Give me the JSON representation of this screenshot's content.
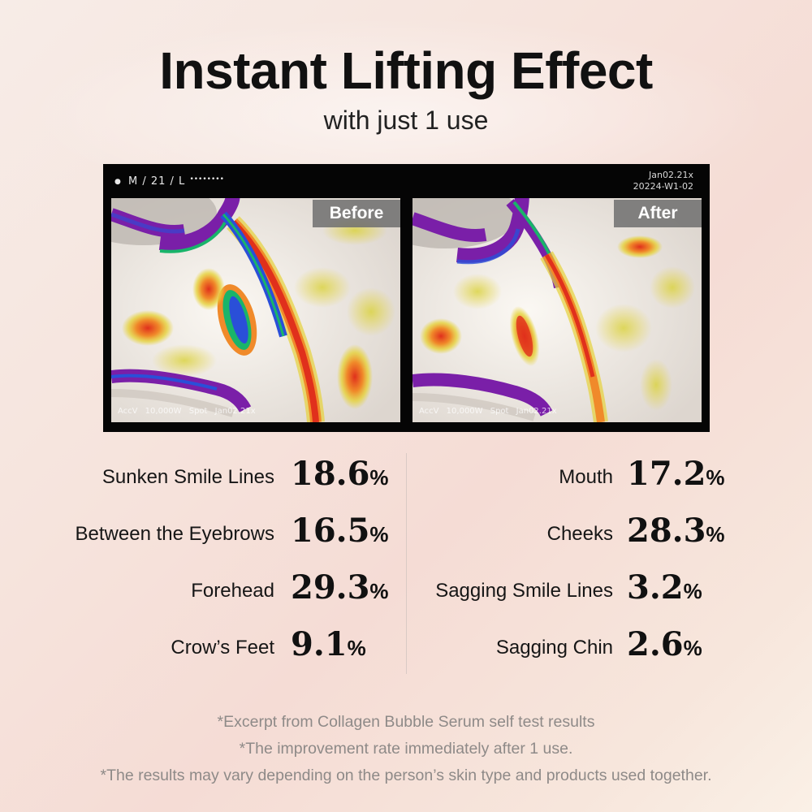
{
  "header": {
    "title": "Instant Lifting Effect",
    "subtitle": "with just 1 use"
  },
  "scan_panel": {
    "meta_left": "M / 21 / L",
    "meta_dots": "••••••••",
    "meta_right_line1": "Jan02.21x",
    "meta_right_line2": "20224-W1-02",
    "before_label": "Before",
    "after_label": "After",
    "caption": "AccV 10,000W Spot Jan02.21x",
    "heat_colors": [
      "#7a1fa8",
      "#2a4fd8",
      "#19b46a",
      "#e6d23a",
      "#f08a2a",
      "#e0301c"
    ]
  },
  "stats": {
    "left": [
      {
        "label": "Sunken Smile Lines",
        "value": "18.6",
        "unit": "%"
      },
      {
        "label": "Between the Eyebrows",
        "value": "16.5",
        "unit": "%"
      },
      {
        "label": "Forehead",
        "value": "29.3",
        "unit": "%"
      },
      {
        "label": "Crow’s Feet",
        "value": "9.1",
        "unit": "%"
      }
    ],
    "right": [
      {
        "label": "Mouth",
        "value": "17.2",
        "unit": "%"
      },
      {
        "label": "Cheeks",
        "value": "28.3",
        "unit": "%"
      },
      {
        "label": "Sagging Smile Lines",
        "value": "3.2",
        "unit": "%"
      },
      {
        "label": "Sagging Chin",
        "value": "2.6",
        "unit": "%"
      }
    ]
  },
  "footnotes": [
    "*Excerpt from Collagen Bubble Serum self test results",
    "*The improvement rate immediately after 1 use.",
    "*The results may vary depending on the person’s skin type and products used together."
  ]
}
